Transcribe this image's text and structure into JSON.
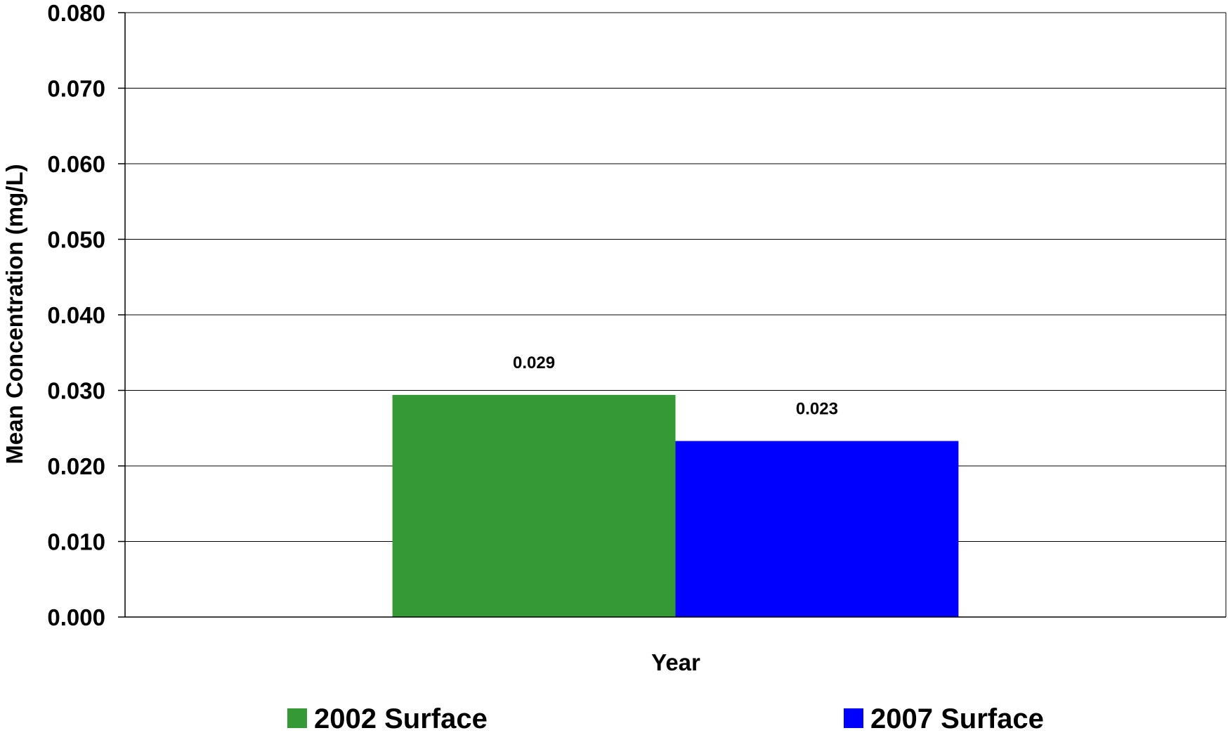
{
  "chart_data": {
    "type": "bar",
    "categories": [
      ""
    ],
    "series": [
      {
        "name": "2002 Surface",
        "values": [
          0.0294
        ],
        "label": "0.029",
        "color": "#359a35"
      },
      {
        "name": "2007 Surface",
        "values": [
          0.0233
        ],
        "label": "0.023",
        "color": "#0000ff"
      }
    ],
    "title": "",
    "xlabel": "Year",
    "ylabel": "Mean Concentration (mg/L)",
    "ylim": [
      0,
      0.08
    ],
    "yticks": [
      {
        "value": 0.0,
        "label": "0.000"
      },
      {
        "value": 0.01,
        "label": "0.010"
      },
      {
        "value": 0.02,
        "label": "0.020"
      },
      {
        "value": 0.03,
        "label": "0.030"
      },
      {
        "value": 0.04,
        "label": "0.040"
      },
      {
        "value": 0.05,
        "label": "0.050"
      },
      {
        "value": 0.06,
        "label": "0.060"
      },
      {
        "value": 0.07,
        "label": "0.070"
      },
      {
        "value": 0.08,
        "label": "0.080"
      }
    ],
    "grid": true,
    "legend": "bottom"
  }
}
